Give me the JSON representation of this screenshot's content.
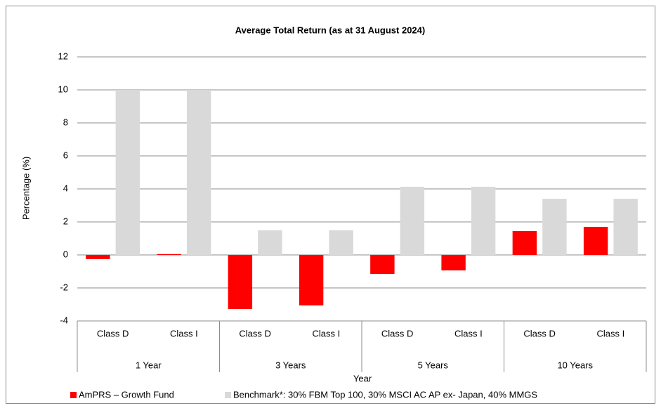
{
  "chart_data": {
    "type": "bar",
    "title": "Average Total Return (as at 31 August 2024)",
    "y_label": "Percentage (%)",
    "x_label": "Year",
    "categories": [
      "Class D",
      "Class I",
      "Class D",
      "Class I",
      "Class D",
      "Class I",
      "Class D",
      "Class I"
    ],
    "groups": [
      "1 Year",
      "3 Years",
      "5 Years",
      "10 Years"
    ],
    "series": [
      {
        "name": "AmPRS – Growth Fund",
        "color": "#ff0000",
        "values": [
          -0.25,
          0.05,
          -3.28,
          -3.06,
          -1.15,
          -0.94,
          1.45,
          1.7
        ]
      },
      {
        "name": "Benchmark*: 30% FBM Top 100, 30% MSCI AC AP ex- Japan, 40% MMGS",
        "color": "#d9d9d9",
        "values": [
          10.0,
          10.0,
          1.49,
          1.49,
          4.13,
          4.13,
          3.4,
          3.4
        ]
      }
    ],
    "ylim": [
      -4,
      12
    ],
    "yticks": [
      -4,
      -2,
      0,
      2,
      4,
      6,
      8,
      10,
      12
    ],
    "grid": true,
    "legend": "bottom"
  }
}
